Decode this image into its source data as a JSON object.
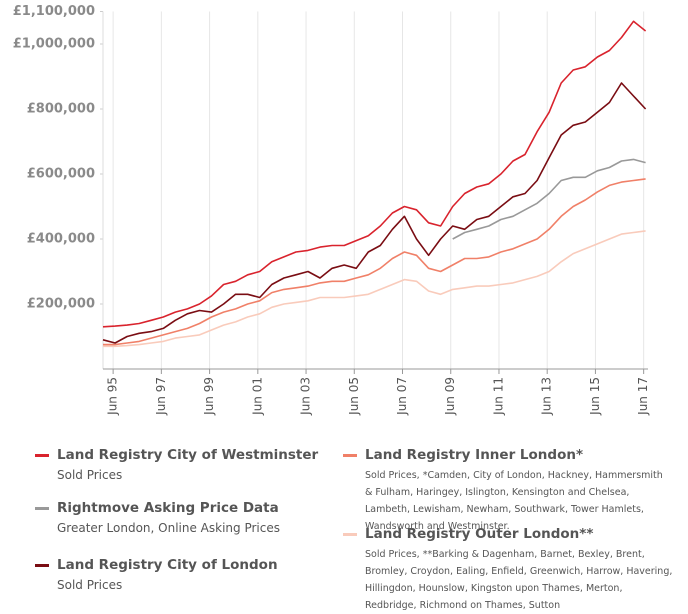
{
  "chart_data": {
    "type": "line",
    "x": [
      1995.0,
      1995.5,
      1996.0,
      1996.5,
      1997.0,
      1997.5,
      1998.0,
      1998.5,
      1999.0,
      1999.5,
      2000.0,
      2000.5,
      2001.0,
      2001.5,
      2002.0,
      2002.5,
      2003.0,
      2003.5,
      2004.0,
      2004.5,
      2005.0,
      2005.5,
      2006.0,
      2006.5,
      2007.0,
      2007.5,
      2008.0,
      2008.5,
      2009.0,
      2009.5,
      2010.0,
      2010.5,
      2011.0,
      2011.5,
      2012.0,
      2012.5,
      2013.0,
      2013.5,
      2014.0,
      2014.5,
      2015.0,
      2015.5,
      2016.0,
      2016.5,
      2017.0,
      2017.5
    ],
    "series": [
      {
        "name": "Land Registry City of Westminster",
        "description": "Sold Prices",
        "color": "#d9232d",
        "values": [
          130000,
          132000,
          135000,
          140000,
          150000,
          160000,
          175000,
          185000,
          200000,
          225000,
          260000,
          270000,
          290000,
          300000,
          330000,
          345000,
          360000,
          365000,
          375000,
          380000,
          380000,
          395000,
          410000,
          440000,
          480000,
          500000,
          490000,
          450000,
          440000,
          500000,
          540000,
          560000,
          570000,
          600000,
          640000,
          660000,
          730000,
          790000,
          880000,
          920000,
          930000,
          960000,
          980000,
          1020000,
          1070000,
          1040000
        ]
      },
      {
        "name": "Rightmove Asking Price Data",
        "description": "Greater London, Online Asking Prices",
        "color": "#999999",
        "values": [
          null,
          null,
          null,
          null,
          null,
          null,
          null,
          null,
          null,
          null,
          null,
          null,
          null,
          null,
          null,
          null,
          null,
          null,
          null,
          null,
          null,
          null,
          null,
          null,
          null,
          null,
          null,
          null,
          null,
          400000,
          420000,
          430000,
          440000,
          460000,
          470000,
          490000,
          510000,
          540000,
          580000,
          590000,
          590000,
          610000,
          620000,
          640000,
          645000,
          635000
        ]
      },
      {
        "name": "Land Registry City of London",
        "description": "Sold Prices",
        "color": "#7a0d13",
        "values": [
          90000,
          80000,
          100000,
          110000,
          115000,
          125000,
          150000,
          170000,
          180000,
          175000,
          200000,
          230000,
          230000,
          220000,
          260000,
          280000,
          290000,
          300000,
          280000,
          310000,
          320000,
          310000,
          360000,
          380000,
          430000,
          470000,
          400000,
          350000,
          400000,
          440000,
          430000,
          460000,
          470000,
          500000,
          530000,
          540000,
          580000,
          650000,
          720000,
          750000,
          760000,
          790000,
          820000,
          880000,
          840000,
          800000
        ]
      },
      {
        "name": "Land Registry Inner London*",
        "description": "Sold Prices, *Camden, City of London, Hackney, Hammersmith & Fulham, Haringey, Islington, Kensington and Chelsea, Lambeth, Lewisham, Newham, Southwark, Tower Hamlets, Wandsworth and Westminster.",
        "color": "#f08068",
        "values": [
          75000,
          75000,
          80000,
          85000,
          95000,
          105000,
          115000,
          125000,
          140000,
          160000,
          175000,
          185000,
          200000,
          210000,
          235000,
          245000,
          250000,
          255000,
          265000,
          270000,
          270000,
          280000,
          290000,
          310000,
          340000,
          360000,
          350000,
          310000,
          300000,
          320000,
          340000,
          340000,
          345000,
          360000,
          370000,
          385000,
          400000,
          430000,
          470000,
          500000,
          520000,
          545000,
          565000,
          575000,
          580000,
          585000
        ]
      },
      {
        "name": "Land Registry Outer London**",
        "description": "Sold Prices, **Barking & Dagenham, Barnet, Bexley, Brent, Bromley, Croydon, Ealing, Enfield, Greenwich, Harrow, Havering, Hillingdon, Hounslow, Kingston upon Thames, Merton, Redbridge, Richmond on Thames, Sutton",
        "color": "#f9cbbb",
        "values": [
          70000,
          70000,
          72000,
          75000,
          80000,
          85000,
          95000,
          100000,
          105000,
          120000,
          135000,
          145000,
          160000,
          170000,
          190000,
          200000,
          205000,
          210000,
          220000,
          220000,
          220000,
          225000,
          230000,
          245000,
          260000,
          275000,
          270000,
          240000,
          230000,
          245000,
          250000,
          255000,
          255000,
          260000,
          265000,
          275000,
          285000,
          300000,
          330000,
          355000,
          370000,
          385000,
          400000,
          415000,
          420000,
          425000
        ]
      }
    ],
    "xlim": [
      1995.0,
      2017.6
    ],
    "xticks": [
      {
        "value": 1995.42,
        "label": "Jun 95"
      },
      {
        "value": 1997.42,
        "label": "Jun 97"
      },
      {
        "value": 1999.42,
        "label": "Jun 99"
      },
      {
        "value": 2001.42,
        "label": "Jun 01"
      },
      {
        "value": 2003.42,
        "label": "Jun 03"
      },
      {
        "value": 2005.42,
        "label": "Jun 05"
      },
      {
        "value": 2007.42,
        "label": "Jun 07"
      },
      {
        "value": 2009.42,
        "label": "Jun 09"
      },
      {
        "value": 2011.42,
        "label": "Jun 11"
      },
      {
        "value": 2013.42,
        "label": "Jun 13"
      },
      {
        "value": 2015.42,
        "label": "Jun 15"
      },
      {
        "value": 2017.42,
        "label": "Jun 17"
      }
    ],
    "ylim": [
      0,
      1100000
    ],
    "yticks": [
      {
        "value": 200000,
        "label": "£200,000"
      },
      {
        "value": 400000,
        "label": "£400,000"
      },
      {
        "value": 600000,
        "label": "£600,000"
      },
      {
        "value": 800000,
        "label": "£800,000"
      },
      {
        "value": 1000000,
        "label": "£1,000,000"
      },
      {
        "value": 1100000,
        "label": "£1,100,000"
      }
    ],
    "grid": true
  }
}
